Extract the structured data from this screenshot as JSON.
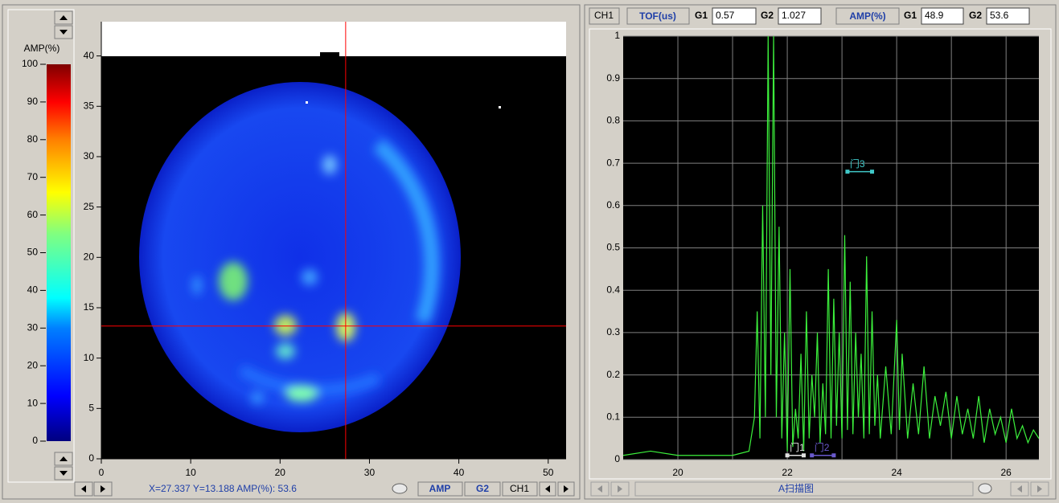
{
  "c_scan": {
    "colorbar": {
      "label": "AMP(%)",
      "lim": [
        0,
        100
      ],
      "ticks": [
        0,
        10,
        20,
        30,
        40,
        50,
        60,
        70,
        80,
        90,
        100
      ]
    },
    "xlim": [
      0,
      52
    ],
    "ylim": [
      0,
      43.4
    ],
    "xticks": [
      0,
      10,
      20,
      30,
      40,
      50
    ],
    "yticks": [
      0,
      5,
      10,
      15,
      20,
      25,
      30,
      35,
      40
    ],
    "cursor": {
      "x": 27.337,
      "y": 13.188
    },
    "status": "X=27.337  Y=13.188  AMP(%): 53.6",
    "buttons": [
      "AMP",
      "G2",
      "CH1"
    ]
  },
  "a_scan_header": {
    "channel": "CH1",
    "tof_label": "TOF(us)",
    "tof_g1_label": "G1",
    "tof_g1": 0.57,
    "tof_g2_label": "G2",
    "tof_g2": 1.027,
    "amp_label": "AMP(%)",
    "amp_g1_label": "G1",
    "amp_g1": 48.9,
    "amp_g2_label": "G2",
    "amp_g2": 53.6
  },
  "a_scan": {
    "type": "line",
    "title": "A扫描图",
    "color": "#3cf03c",
    "xlim": [
      19,
      26.6
    ],
    "ylim": [
      0,
      1
    ],
    "xticks": [
      20,
      22,
      24,
      26
    ],
    "x_grid": [
      20,
      21,
      22,
      23,
      24,
      25,
      26
    ],
    "yticks": [
      0,
      0.1,
      0.2,
      0.3,
      0.4,
      0.5,
      0.6,
      0.7,
      0.8,
      0.9,
      1
    ],
    "x": [
      19,
      19.5,
      20,
      20.5,
      21,
      21.3,
      21.4,
      21.45,
      21.5,
      21.55,
      21.6,
      21.65,
      21.7,
      21.75,
      21.8,
      21.85,
      21.9,
      21.95,
      22,
      22.05,
      22.1,
      22.15,
      22.2,
      22.25,
      22.3,
      22.35,
      22.4,
      22.45,
      22.5,
      22.55,
      22.6,
      22.65,
      22.7,
      22.75,
      22.8,
      22.85,
      22.9,
      22.95,
      23,
      23.05,
      23.1,
      23.15,
      23.2,
      23.25,
      23.3,
      23.35,
      23.4,
      23.45,
      23.5,
      23.55,
      23.6,
      23.65,
      23.7,
      23.8,
      23.9,
      24,
      24.05,
      24.1,
      24.2,
      24.3,
      24.4,
      24.5,
      24.6,
      24.7,
      24.8,
      24.9,
      25,
      25.1,
      25.2,
      25.3,
      25.4,
      25.5,
      25.6,
      25.7,
      25.8,
      25.9,
      26,
      26.1,
      26.2,
      26.3,
      26.4,
      26.5,
      26.6
    ],
    "values": [
      0.01,
      0.02,
      0.01,
      0.01,
      0.01,
      0.02,
      0.1,
      0.35,
      0.05,
      0.6,
      0.1,
      1,
      0.2,
      1,
      0.1,
      0.55,
      0.05,
      0.3,
      0.02,
      0.45,
      0.03,
      0.12,
      0.05,
      0.25,
      0.02,
      0.35,
      0.05,
      0.2,
      0.1,
      0.3,
      0.04,
      0.18,
      0.06,
      0.45,
      0.05,
      0.38,
      0.08,
      0.3,
      0.05,
      0.53,
      0.07,
      0.42,
      0.06,
      0.3,
      0.1,
      0.25,
      0.05,
      0.48,
      0.06,
      0.35,
      0.08,
      0.2,
      0.05,
      0.22,
      0.06,
      0.33,
      0.07,
      0.25,
      0.05,
      0.18,
      0.06,
      0.22,
      0.05,
      0.15,
      0.08,
      0.16,
      0.05,
      0.15,
      0.06,
      0.12,
      0.05,
      0.15,
      0.04,
      0.12,
      0.06,
      0.1,
      0.04,
      0.12,
      0.05,
      0.08,
      0.04,
      0.07,
      0.05
    ],
    "gates": [
      {
        "label": "门1",
        "start": 22.0,
        "end": 22.3,
        "level": 0.01,
        "color": "#e0e0e0"
      },
      {
        "label": "门2",
        "start": 22.45,
        "end": 22.85,
        "level": 0.01,
        "color": "#6a5acd"
      },
      {
        "label": "门3",
        "start": 23.1,
        "end": 23.55,
        "level": 0.68,
        "color": "#40c8c8"
      }
    ]
  }
}
